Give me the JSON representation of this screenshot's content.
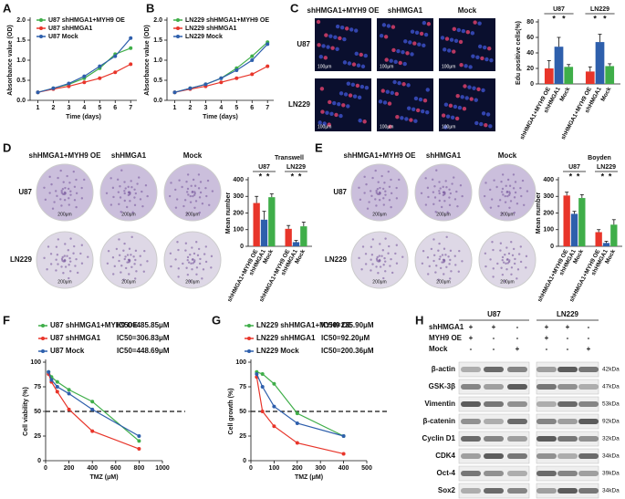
{
  "chart_data": [
    {
      "type": "line",
      "panel": "A",
      "xlabel": "Time (days)",
      "ylabel": "Absorbance value (OD)",
      "x": [
        1,
        2,
        3,
        4,
        5,
        6,
        7
      ],
      "xlim": [
        0.5,
        7.4
      ],
      "xticks": [
        1,
        2,
        3,
        4,
        5,
        6,
        7
      ],
      "ylim": [
        0,
        2
      ],
      "yticks": [
        {
          "value": 0,
          "label": "0.0"
        },
        {
          "value": 0.5,
          "label": "0.5"
        },
        {
          "value": 1,
          "label": "1.0"
        },
        {
          "value": 1.5,
          "label": "1.5"
        },
        {
          "value": 2,
          "label": "2.0"
        }
      ],
      "series": [
        {
          "name": "U87 shHMGA1+MYH9 OE",
          "color": "#3fae49",
          "values": [
            0.2,
            0.3,
            0.4,
            0.55,
            0.8,
            1.15,
            1.3
          ]
        },
        {
          "name": "U87 shHMGA1",
          "color": "#e8352a",
          "values": [
            0.2,
            0.28,
            0.35,
            0.45,
            0.55,
            0.7,
            0.9
          ]
        },
        {
          "name": "U87 Mock",
          "color": "#2e5fac",
          "values": [
            0.2,
            0.3,
            0.42,
            0.6,
            0.85,
            1.1,
            1.55
          ]
        }
      ]
    },
    {
      "type": "line",
      "panel": "B",
      "xlabel": "Time (days)",
      "ylabel": "Absorbance value (OD)",
      "x": [
        1,
        2,
        3,
        4,
        5,
        6,
        7
      ],
      "xlim": [
        0.5,
        7.4
      ],
      "xticks": [
        1,
        2,
        3,
        4,
        5,
        6,
        7
      ],
      "ylim": [
        0,
        2
      ],
      "yticks": [
        {
          "value": 0,
          "label": "0.0"
        },
        {
          "value": 0.5,
          "label": "0.5"
        },
        {
          "value": 1,
          "label": "1.0"
        },
        {
          "value": 1.5,
          "label": "1.5"
        },
        {
          "value": 2,
          "label": "2.0"
        }
      ],
      "series": [
        {
          "name": "LN229 shHMGA1+MYH9 OE",
          "color": "#3fae49",
          "values": [
            0.2,
            0.3,
            0.4,
            0.55,
            0.8,
            1.1,
            1.45
          ]
        },
        {
          "name": "LN229 shHMGA1",
          "color": "#e8352a",
          "values": [
            0.2,
            0.28,
            0.35,
            0.45,
            0.55,
            0.65,
            0.85
          ]
        },
        {
          "name": "LN229 Mock",
          "color": "#2e5fac",
          "values": [
            0.2,
            0.3,
            0.4,
            0.55,
            0.75,
            1.0,
            1.4
          ]
        }
      ]
    },
    {
      "type": "bar",
      "panel": "C",
      "ylabel": "Edu positive cells(%)",
      "significance": "*",
      "image_columns": [
        "shHMGA1+MYH9 OE",
        "shHMGA1",
        "Mock"
      ],
      "image_rows": [
        "U87",
        "LN229"
      ],
      "scale_bar": "100μm",
      "categories": [
        "U87",
        "LN229"
      ],
      "ylim": [
        0,
        80
      ],
      "yticks": [
        0,
        20,
        40,
        60,
        80
      ],
      "series": [
        {
          "name": "shHMGA1+MYH9 OE",
          "color": "#e8352a",
          "values": [
            20,
            16
          ],
          "errors": [
            10,
            6
          ]
        },
        {
          "name": "shHMGA1",
          "color": "#2e5fac",
          "values": [
            48,
            54
          ],
          "errors": [
            12,
            10
          ]
        },
        {
          "name": "Mock",
          "color": "#3fae49",
          "values": [
            22,
            23
          ],
          "errors": [
            3,
            3
          ]
        }
      ]
    },
    {
      "type": "bar",
      "panel": "D",
      "title": "Transwell",
      "ylabel": "Mean number",
      "significance": "*",
      "image_columns": [
        "shHMGA1+MYH9 OE",
        "shHMGA1",
        "Mock"
      ],
      "image_rows": [
        "U87",
        "LN229"
      ],
      "scale_bar": "200μm",
      "categories": [
        "U87",
        "LN229"
      ],
      "ylim": [
        0,
        400
      ],
      "yticks": [
        0,
        100,
        200,
        300,
        400
      ],
      "series": [
        {
          "name": "shHMGA1+MYH9 OE",
          "color": "#e8352a",
          "values": [
            260,
            105
          ],
          "errors": [
            40,
            20
          ]
        },
        {
          "name": "shHMGA1",
          "color": "#2e5fac",
          "values": [
            160,
            25
          ],
          "errors": [
            50,
            10
          ]
        },
        {
          "name": "Mock",
          "color": "#3fae49",
          "values": [
            295,
            120
          ],
          "errors": [
            20,
            25
          ]
        }
      ]
    },
    {
      "type": "bar",
      "panel": "E",
      "title": "Boyden",
      "ylabel": "Mean number",
      "significance": "*",
      "image_columns": [
        "shHMGA1+MYH9 OE",
        "shHMGA1",
        "Mock"
      ],
      "image_rows": [
        "U87",
        "LN229"
      ],
      "scale_bar": "200μm",
      "categories": [
        "U87",
        "LN229"
      ],
      "ylim": [
        0,
        400
      ],
      "yticks": [
        0,
        100,
        200,
        300,
        400
      ],
      "series": [
        {
          "name": "shHMGA1+MYH9 OE",
          "color": "#e8352a",
          "values": [
            305,
            85
          ],
          "errors": [
            20,
            15
          ]
        },
        {
          "name": "shHMGA1",
          "color": "#2e5fac",
          "values": [
            195,
            20
          ],
          "errors": [
            15,
            10
          ]
        },
        {
          "name": "Mock",
          "color": "#3fae49",
          "values": [
            290,
            130
          ],
          "errors": [
            20,
            30
          ]
        }
      ]
    },
    {
      "type": "line",
      "panel": "F",
      "xlabel": "TMZ (μM)",
      "ylabel": "Cell viability (%)",
      "reference_line": 50,
      "x": [
        25,
        50,
        100,
        200,
        400,
        800
      ],
      "xlim": [
        0,
        1000
      ],
      "xticks": [
        0,
        200,
        400,
        600,
        800,
        1000
      ],
      "ylim": [
        0,
        100
      ],
      "yticks": [
        0,
        25,
        50,
        75,
        100
      ],
      "series": [
        {
          "name": "U87 shHMGA1+MYH9 OE",
          "ic50": "IC50=485.85μM",
          "color": "#3fae49",
          "values": [
            90,
            85,
            80,
            72,
            60,
            20
          ]
        },
        {
          "name": "U87 shHMGA1",
          "ic50": "IC50=306.83μM",
          "color": "#e8352a",
          "values": [
            88,
            80,
            70,
            52,
            30,
            12
          ]
        },
        {
          "name": "U87 Mock",
          "ic50": "IC50=448.69μM",
          "color": "#2e5fac",
          "values": [
            90,
            82,
            75,
            68,
            52,
            25
          ]
        }
      ]
    },
    {
      "type": "line",
      "panel": "G",
      "xlabel": "TMZ (μM)",
      "ylabel": "Cell growth (%)",
      "reference_line": 50,
      "x": [
        25,
        50,
        100,
        200,
        400
      ],
      "xlim": [
        0,
        500
      ],
      "xticks": [
        0,
        100,
        200,
        300,
        400,
        500
      ],
      "ylim": [
        0,
        100
      ],
      "yticks": [
        0,
        25,
        50,
        75,
        100
      ],
      "series": [
        {
          "name": "LN229 shHMGA1+MYH9 OE",
          "ic50": "IC50=235.90μM",
          "color": "#3fae49",
          "values": [
            90,
            88,
            78,
            48,
            25
          ]
        },
        {
          "name": "LN229 shHMGA1",
          "ic50": "IC50=92.20μM",
          "color": "#e8352a",
          "values": [
            85,
            50,
            35,
            18,
            7
          ]
        },
        {
          "name": "LN229 Mock",
          "ic50": "IC50=200.36μM",
          "color": "#2e5fac",
          "values": [
            88,
            75,
            55,
            38,
            25
          ]
        }
      ]
    }
  ],
  "blot": {
    "panel": "H",
    "groups": [
      "U87",
      "LN229"
    ],
    "conditions": [
      "shHMGA1",
      "MYH9 OE",
      "Mock"
    ],
    "signs": [
      [
        "+",
        "+",
        "-",
        "+",
        "+",
        "-"
      ],
      [
        "+",
        "-",
        "-",
        "+",
        "-",
        "-"
      ],
      [
        "-",
        "-",
        "+",
        "-",
        "-",
        "+"
      ]
    ],
    "proteins": [
      {
        "name": "β-actin",
        "size": "42kDa"
      },
      {
        "name": "GSK-3β",
        "size": "47kDa"
      },
      {
        "name": "Vimentin",
        "size": "53kDa"
      },
      {
        "name": "β-catenin",
        "size": "92kDa"
      },
      {
        "name": "Cyclin D1",
        "size": "32kDa"
      },
      {
        "name": "CDK4",
        "size": "34kDa"
      },
      {
        "name": "Oct-4",
        "size": "39kDa"
      },
      {
        "name": "Sox2",
        "size": "34kDa"
      }
    ]
  }
}
